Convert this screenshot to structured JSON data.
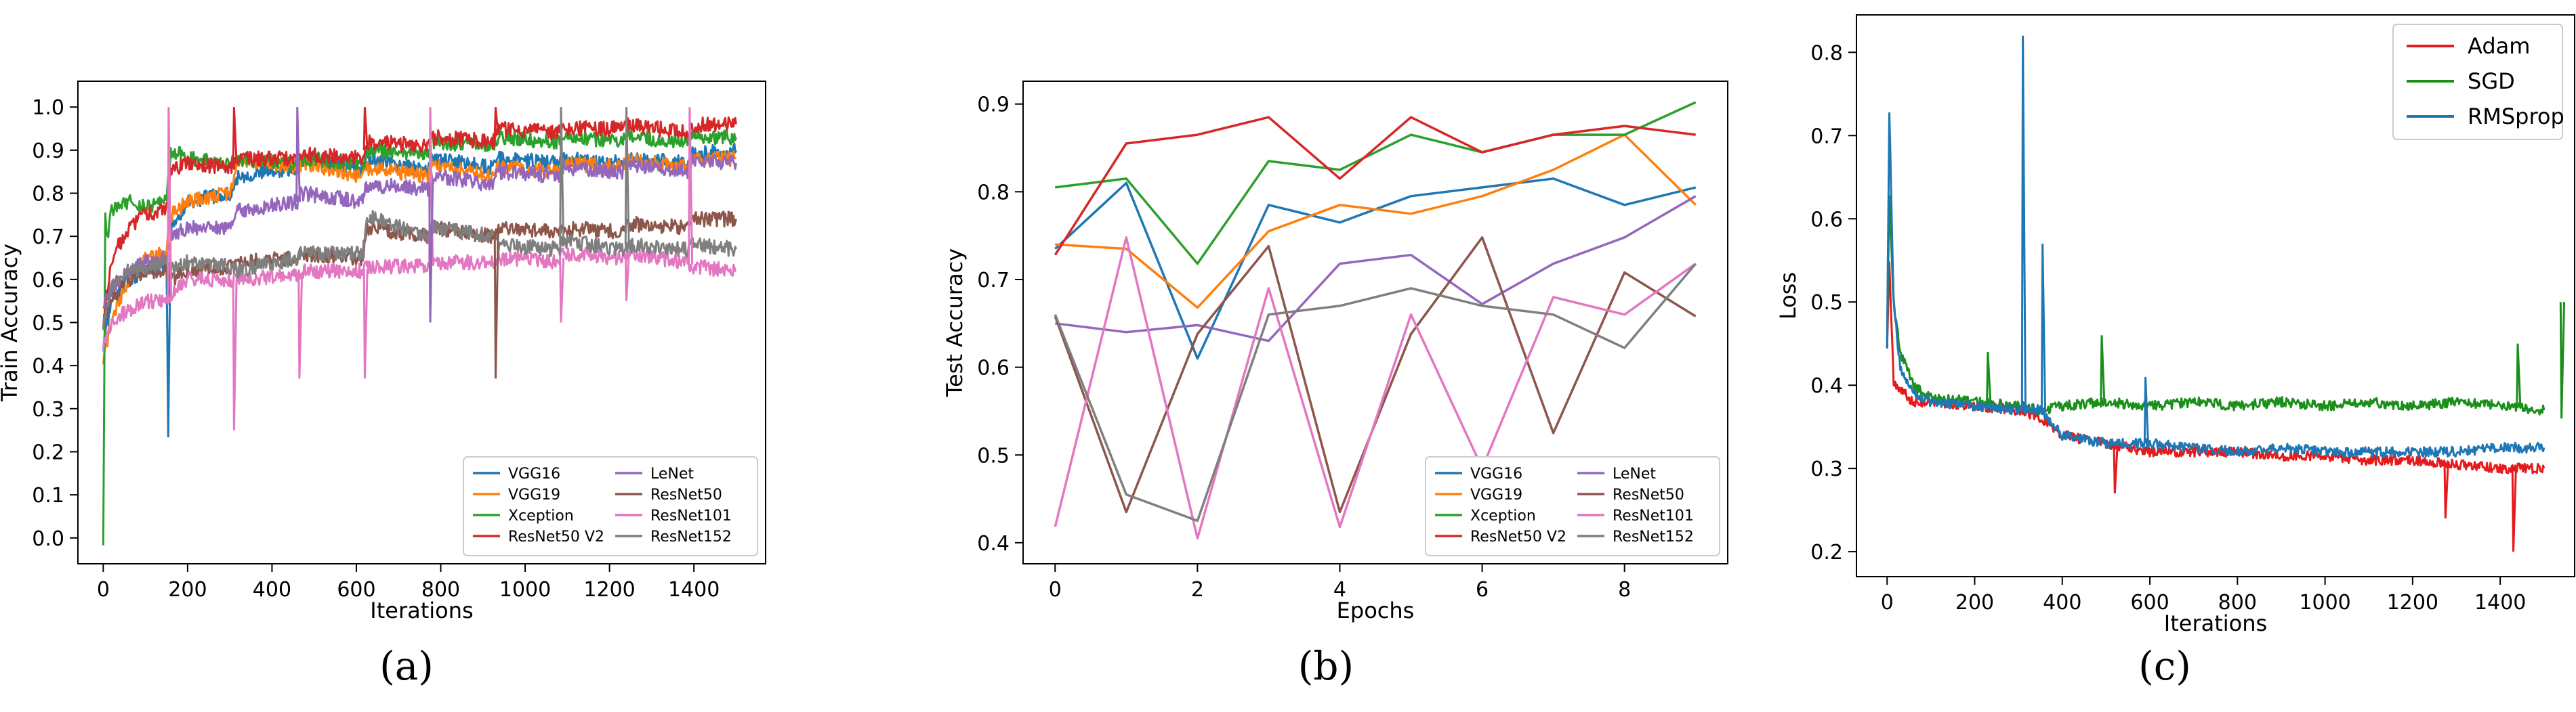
{
  "captions": {
    "a": "(a)",
    "b": "(b)",
    "c": "(c)"
  },
  "chart_data": [
    {
      "type": "line",
      "ylabel": "Train Accuracy",
      "xlabel": "Iterations",
      "xlim": [
        -60,
        1570
      ],
      "ylim": [
        -0.06,
        1.06
      ],
      "xticks": [
        0,
        200,
        400,
        600,
        800,
        1000,
        1200,
        1400
      ],
      "xtick_labels": [
        "0",
        "200",
        "400",
        "600",
        "800",
        "1000",
        "1200",
        "1400"
      ],
      "yticks": [
        0.0,
        0.1,
        0.2,
        0.3,
        0.4,
        0.5,
        0.6,
        0.7,
        0.8,
        0.9,
        1.0
      ],
      "ytick_labels": [
        "0.0",
        "0.1",
        "0.2",
        "0.3",
        "0.4",
        "0.5",
        "0.6",
        "0.7",
        "0.8",
        "0.9",
        "1.0"
      ],
      "legend_position": "lower-right",
      "legend_columns": 2,
      "series": [
        {
          "name": "VGG16",
          "color": "#1f77b4",
          "x": [
            0,
            20,
            60,
            100,
            150,
            154,
            160,
            200,
            300,
            320,
            460,
            470,
            615,
            625,
            770,
            780,
            925,
            935,
            1080,
            1090,
            1230,
            1240,
            1385,
            1395,
            1500
          ],
          "y": [
            0.45,
            0.55,
            0.6,
            0.62,
            0.63,
            0.25,
            0.72,
            0.78,
            0.8,
            0.84,
            0.86,
            0.88,
            0.86,
            0.88,
            0.85,
            0.88,
            0.86,
            0.88,
            0.87,
            0.88,
            0.87,
            0.88,
            0.87,
            0.89,
            0.9
          ]
        },
        {
          "name": "VGG19",
          "color": "#ff7f0e",
          "x": [
            0,
            20,
            60,
            100,
            150,
            160,
            200,
            300,
            320,
            460,
            470,
            615,
            625,
            770,
            780,
            925,
            935,
            1080,
            1090,
            1230,
            1240,
            1385,
            1395,
            1500
          ],
          "y": [
            0.42,
            0.5,
            0.6,
            0.65,
            0.66,
            0.75,
            0.78,
            0.8,
            0.88,
            0.86,
            0.87,
            0.84,
            0.86,
            0.84,
            0.87,
            0.84,
            0.86,
            0.85,
            0.87,
            0.86,
            0.88,
            0.86,
            0.88,
            0.88
          ]
        },
        {
          "name": "Xception",
          "color": "#2ca02c",
          "x": [
            0,
            5,
            10,
            20,
            60,
            100,
            150,
            160,
            200,
            300,
            320,
            460,
            470,
            615,
            625,
            770,
            780,
            925,
            935,
            1080,
            1090,
            1230,
            1240,
            1385,
            1395,
            1500
          ],
          "y": [
            0.0,
            0.75,
            0.7,
            0.76,
            0.78,
            0.77,
            0.78,
            0.9,
            0.88,
            0.87,
            0.88,
            0.87,
            0.88,
            0.87,
            0.9,
            0.89,
            0.92,
            0.91,
            0.93,
            0.92,
            0.93,
            0.92,
            0.93,
            0.92,
            0.93,
            0.93
          ]
        },
        {
          "name": "ResNet50 V2",
          "color": "#d62728",
          "x": [
            0,
            20,
            60,
            100,
            150,
            160,
            200,
            300,
            320,
            460,
            470,
            615,
            625,
            770,
            780,
            925,
            935,
            1080,
            1090,
            1230,
            1240,
            1385,
            1395,
            1500
          ],
          "y": [
            0.5,
            0.65,
            0.72,
            0.75,
            0.76,
            0.85,
            0.87,
            0.86,
            0.88,
            0.88,
            0.89,
            0.88,
            0.92,
            0.91,
            0.93,
            0.92,
            0.95,
            0.94,
            0.95,
            0.95,
            0.96,
            0.94,
            0.96,
            0.96
          ]
        },
        {
          "name": "LeNet",
          "color": "#9467bd",
          "x": [
            0,
            20,
            60,
            100,
            150,
            160,
            200,
            300,
            320,
            460,
            470,
            615,
            625,
            770,
            780,
            925,
            935,
            1080,
            1090,
            1230,
            1240,
            1385,
            1395,
            1500
          ],
          "y": [
            0.55,
            0.58,
            0.62,
            0.64,
            0.65,
            0.7,
            0.72,
            0.72,
            0.76,
            0.78,
            0.8,
            0.78,
            0.82,
            0.81,
            0.84,
            0.82,
            0.85,
            0.84,
            0.86,
            0.85,
            0.87,
            0.85,
            0.88,
            0.87
          ]
        },
        {
          "name": "ResNet50",
          "color": "#8c564b",
          "x": [
            0,
            20,
            60,
            100,
            150,
            160,
            200,
            300,
            320,
            460,
            470,
            615,
            625,
            770,
            780,
            925,
            935,
            1080,
            1090,
            1230,
            1240,
            1385,
            1395,
            1500
          ],
          "y": [
            0.5,
            0.55,
            0.6,
            0.62,
            0.62,
            0.6,
            0.62,
            0.63,
            0.64,
            0.65,
            0.66,
            0.65,
            0.72,
            0.7,
            0.72,
            0.7,
            0.72,
            0.71,
            0.72,
            0.71,
            0.73,
            0.72,
            0.74,
            0.74
          ]
        },
        {
          "name": "ResNet101",
          "color": "#e377c2",
          "x": [
            0,
            20,
            60,
            100,
            150,
            160,
            200,
            300,
            320,
            460,
            470,
            615,
            625,
            770,
            780,
            925,
            935,
            1080,
            1090,
            1230,
            1240,
            1385,
            1395,
            1500
          ],
          "y": [
            0.45,
            0.5,
            0.53,
            0.55,
            0.55,
            0.56,
            0.6,
            0.6,
            0.6,
            0.61,
            0.62,
            0.62,
            0.63,
            0.63,
            0.64,
            0.64,
            0.65,
            0.64,
            0.66,
            0.65,
            0.66,
            0.64,
            0.63,
            0.62
          ]
        },
        {
          "name": "ResNet152",
          "color": "#7f7f7f",
          "x": [
            0,
            20,
            60,
            100,
            150,
            160,
            200,
            300,
            320,
            460,
            470,
            615,
            625,
            770,
            780,
            925,
            935,
            1080,
            1090,
            1230,
            1240,
            1385,
            1395,
            1500
          ],
          "y": [
            0.5,
            0.58,
            0.62,
            0.63,
            0.64,
            0.62,
            0.64,
            0.63,
            0.62,
            0.65,
            0.66,
            0.66,
            0.75,
            0.7,
            0.72,
            0.7,
            0.68,
            0.67,
            0.69,
            0.67,
            0.68,
            0.67,
            0.68,
            0.67
          ]
        }
      ],
      "spikes": [
        {
          "series": "ResNet101",
          "x": 155,
          "y": 1.0
        },
        {
          "series": "ResNet101",
          "x": 310,
          "y": 0.25
        },
        {
          "series": "ResNet101",
          "x": 465,
          "y": 0.37
        },
        {
          "series": "ResNet101",
          "x": 620,
          "y": 0.37
        },
        {
          "series": "ResNet101",
          "x": 775,
          "y": 1.0
        },
        {
          "series": "ResNet50",
          "x": 930,
          "y": 0.37
        },
        {
          "series": "ResNet101",
          "x": 1085,
          "y": 0.5
        },
        {
          "series": "ResNet101",
          "x": 1240,
          "y": 0.55
        },
        {
          "series": "ResNet101",
          "x": 1390,
          "y": 1.0
        },
        {
          "series": "ResNet50 V2",
          "x": 310,
          "y": 1.0
        },
        {
          "series": "ResNet50 V2",
          "x": 620,
          "y": 1.0
        },
        {
          "series": "ResNet50 V2",
          "x": 930,
          "y": 1.0
        },
        {
          "series": "LeNet",
          "x": 460,
          "y": 1.0
        },
        {
          "series": "LeNet",
          "x": 775,
          "y": 0.5
        },
        {
          "series": "ResNet152",
          "x": 1085,
          "y": 1.0
        },
        {
          "series": "ResNet152",
          "x": 1240,
          "y": 1.0
        }
      ]
    },
    {
      "type": "line",
      "ylabel": "Test Accuracy",
      "xlabel": "Epochs",
      "xlim": [
        -0.45,
        9.45
      ],
      "ylim": [
        0.376,
        0.926
      ],
      "xticks": [
        0,
        2,
        4,
        6,
        8
      ],
      "xtick_labels": [
        "0",
        "2",
        "4",
        "6",
        "8"
      ],
      "yticks": [
        0.4,
        0.5,
        0.6,
        0.7,
        0.8,
        0.9
      ],
      "ytick_labels": [
        "0.4",
        "0.5",
        "0.6",
        "0.7",
        "0.8",
        "0.9"
      ],
      "legend_position": "lower-right",
      "legend_columns": 2,
      "x": [
        0,
        1,
        2,
        3,
        4,
        5,
        6,
        7,
        8,
        9
      ],
      "series": [
        {
          "name": "VGG16",
          "color": "#1f77b4",
          "values": [
            0.735,
            0.81,
            0.61,
            0.785,
            0.765,
            0.795,
            0.805,
            0.815,
            0.785,
            0.805
          ]
        },
        {
          "name": "VGG19",
          "color": "#ff7f0e",
          "values": [
            0.74,
            0.735,
            0.668,
            0.755,
            0.785,
            0.775,
            0.795,
            0.825,
            0.865,
            0.785
          ]
        },
        {
          "name": "Xception",
          "color": "#2ca02c",
          "values": [
            0.805,
            0.815,
            0.718,
            0.835,
            0.825,
            0.865,
            0.845,
            0.865,
            0.865,
            0.902
          ]
        },
        {
          "name": "ResNet50 V2",
          "color": "#d62728",
          "values": [
            0.728,
            0.855,
            0.865,
            0.885,
            0.815,
            0.885,
            0.845,
            0.865,
            0.875,
            0.865
          ]
        },
        {
          "name": "LeNet",
          "color": "#9467bd",
          "values": [
            0.65,
            0.64,
            0.648,
            0.63,
            0.718,
            0.728,
            0.672,
            0.718,
            0.748,
            0.795
          ]
        },
        {
          "name": "ResNet50",
          "color": "#8c564b",
          "values": [
            0.658,
            0.435,
            0.638,
            0.738,
            0.435,
            0.638,
            0.748,
            0.525,
            0.708,
            0.658
          ]
        },
        {
          "name": "ResNet101",
          "color": "#e377c2",
          "values": [
            0.418,
            0.748,
            0.405,
            0.69,
            0.418,
            0.66,
            0.485,
            0.68,
            0.66,
            0.718
          ]
        },
        {
          "name": "ResNet152",
          "color": "#7f7f7f",
          "values": [
            0.66,
            0.455,
            0.425,
            0.66,
            0.67,
            0.69,
            0.67,
            0.66,
            0.622,
            0.718
          ]
        }
      ]
    },
    {
      "type": "line",
      "ylabel": "Loss",
      "xlabel": "Iterations",
      "xlim": [
        -70,
        1570
      ],
      "ylim": [
        0.17,
        0.845
      ],
      "xticks": [
        0,
        200,
        400,
        600,
        800,
        1000,
        1200,
        1400
      ],
      "xtick_labels": [
        "0",
        "200",
        "400",
        "600",
        "800",
        "1000",
        "1200",
        "1400"
      ],
      "yticks": [
        0.2,
        0.3,
        0.4,
        0.5,
        0.6,
        0.7,
        0.8
      ],
      "ytick_labels": [
        "0.2",
        "0.3",
        "0.4",
        "0.5",
        "0.6",
        "0.7",
        "0.8"
      ],
      "legend_position": "upper-right",
      "legend_columns": 1,
      "series": [
        {
          "name": "Adam",
          "color": "#e41a1c",
          "x": [
            0,
            5,
            15,
            40,
            60,
            100,
            200,
            300,
            350,
            400,
            500,
            600,
            700,
            800,
            900,
            1000,
            1100,
            1200,
            1300,
            1400,
            1500
          ],
          "y": [
            0.45,
            0.55,
            0.4,
            0.39,
            0.38,
            0.38,
            0.375,
            0.37,
            0.36,
            0.34,
            0.33,
            0.32,
            0.32,
            0.32,
            0.315,
            0.315,
            0.31,
            0.31,
            0.305,
            0.3,
            0.3
          ]
        },
        {
          "name": "SGD",
          "color": "#1a8f1a",
          "x": [
            0,
            5,
            15,
            30,
            60,
            100,
            200,
            300,
            350,
            400,
            500,
            600,
            700,
            800,
            900,
            1000,
            1100,
            1200,
            1300,
            1400,
            1500
          ],
          "y": [
            0.45,
            0.63,
            0.5,
            0.44,
            0.4,
            0.385,
            0.38,
            0.375,
            0.37,
            0.375,
            0.38,
            0.375,
            0.38,
            0.375,
            0.38,
            0.375,
            0.38,
            0.375,
            0.38,
            0.375,
            0.37
          ]
        },
        {
          "name": "RMSprop",
          "color": "#1f77b4",
          "x": [
            0,
            5,
            15,
            30,
            60,
            100,
            200,
            300,
            350,
            400,
            500,
            600,
            700,
            800,
            900,
            1000,
            1100,
            1200,
            1300,
            1400,
            1500
          ],
          "y": [
            0.45,
            0.73,
            0.5,
            0.42,
            0.39,
            0.38,
            0.375,
            0.37,
            0.37,
            0.34,
            0.33,
            0.33,
            0.325,
            0.32,
            0.325,
            0.32,
            0.32,
            0.32,
            0.32,
            0.325,
            0.325
          ]
        }
      ],
      "spikes": [
        {
          "series": "RMSprop",
          "x": 310,
          "y": 0.82
        },
        {
          "series": "RMSprop",
          "x": 355,
          "y": 0.57
        },
        {
          "series": "SGD",
          "x": 490,
          "y": 0.46
        },
        {
          "series": "SGD",
          "x": 1440,
          "y": 0.45
        },
        {
          "series": "SGD",
          "x": 1540,
          "y": 0.36
        },
        {
          "series": "SGD",
          "x": 230,
          "y": 0.44
        },
        {
          "series": "Adam",
          "x": 1430,
          "y": 0.2
        },
        {
          "series": "Adam",
          "x": 1275,
          "y": 0.24
        },
        {
          "series": "Adam",
          "x": 520,
          "y": 0.27
        },
        {
          "series": "RMSprop",
          "x": 590,
          "y": 0.41
        }
      ]
    }
  ]
}
